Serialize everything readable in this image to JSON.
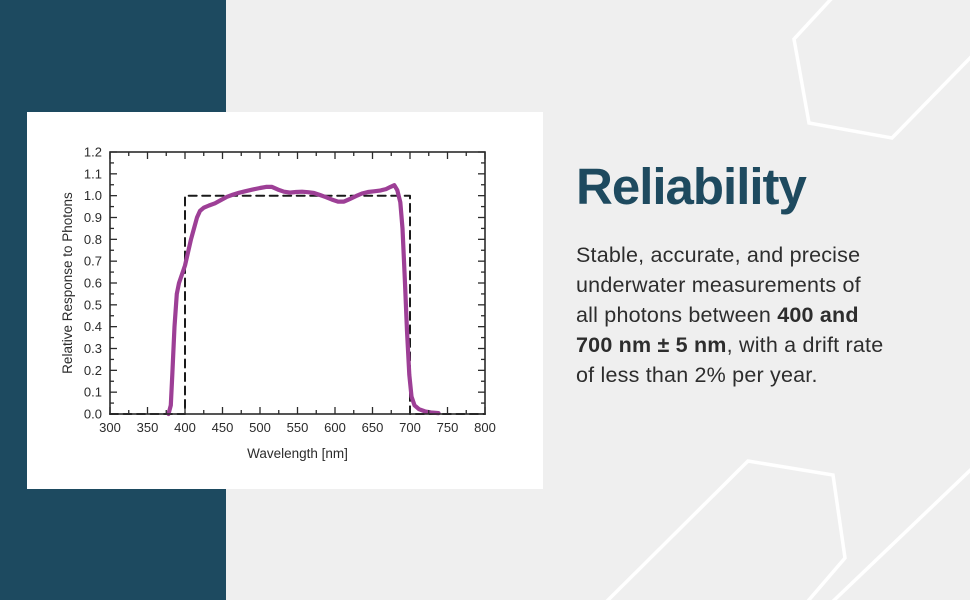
{
  "palette": {
    "background": "#efefef",
    "accent_band": "#1d4a60",
    "card": "#ffffff",
    "hexagon_outline": "#ffffff",
    "heading": "#1e4a5f",
    "body_text": "#2d2d2d",
    "axis": "#2b2b2b",
    "curve": "#9d3f96",
    "ideal_dashed": "#1a1a1a"
  },
  "text_panel": {
    "heading": "Reliability",
    "body_segments": [
      {
        "text": "Stable, accurate, and precise\nunderwater measurements of\nall photons between ",
        "bold": false
      },
      {
        "text": "400 and\n700 nm ± 5 nm",
        "bold": true
      },
      {
        "text": ", with a drift rate\nof less than 2% per year.",
        "bold": false
      }
    ]
  },
  "chart_data": {
    "type": "line",
    "title": "",
    "xlabel": "Wavelength [nm]",
    "ylabel": "Relative Response to Photons",
    "xlim": [
      300,
      800
    ],
    "ylim": [
      0,
      1.2
    ],
    "x_major_step": 50,
    "x_minor_step": 25,
    "y_major_step": 0.1,
    "y_minor_step": 0.05,
    "x_tick_labels": [
      "300",
      "350",
      "400",
      "450",
      "500",
      "550",
      "600",
      "650",
      "700",
      "750",
      "800"
    ],
    "y_tick_labels": [
      "0.0",
      "0.1",
      "0.2",
      "0.3",
      "0.4",
      "0.5",
      "0.6",
      "0.7",
      "0.8",
      "0.9",
      "1.0",
      "1.1",
      "1.2"
    ],
    "grid": false,
    "legend": null,
    "series": [
      {
        "name": "ideal-quantum-response",
        "style": "dashed",
        "color": "#1a1a1a",
        "points": [
          [
            300,
            0
          ],
          [
            400,
            0
          ],
          [
            400,
            1.0
          ],
          [
            700,
            1.0
          ],
          [
            700,
            0
          ],
          [
            800,
            0
          ]
        ]
      },
      {
        "name": "measured-response",
        "style": "solid",
        "color": "#9d3f96",
        "points": [
          [
            378,
            0.0
          ],
          [
            381,
            0.04
          ],
          [
            383,
            0.18
          ],
          [
            386,
            0.4
          ],
          [
            389,
            0.55
          ],
          [
            392,
            0.6
          ],
          [
            396,
            0.64
          ],
          [
            400,
            0.68
          ],
          [
            404,
            0.74
          ],
          [
            408,
            0.8
          ],
          [
            412,
            0.85
          ],
          [
            416,
            0.9
          ],
          [
            420,
            0.93
          ],
          [
            425,
            0.945
          ],
          [
            432,
            0.955
          ],
          [
            440,
            0.965
          ],
          [
            448,
            0.98
          ],
          [
            456,
            0.995
          ],
          [
            464,
            1.005
          ],
          [
            472,
            1.013
          ],
          [
            480,
            1.02
          ],
          [
            490,
            1.028
          ],
          [
            500,
            1.035
          ],
          [
            508,
            1.04
          ],
          [
            516,
            1.04
          ],
          [
            524,
            1.028
          ],
          [
            532,
            1.018
          ],
          [
            540,
            1.014
          ],
          [
            548,
            1.017
          ],
          [
            556,
            1.018
          ],
          [
            564,
            1.016
          ],
          [
            572,
            1.012
          ],
          [
            580,
            1.003
          ],
          [
            588,
            0.993
          ],
          [
            596,
            0.982
          ],
          [
            604,
            0.973
          ],
          [
            612,
            0.973
          ],
          [
            620,
            0.985
          ],
          [
            628,
            0.998
          ],
          [
            636,
            1.01
          ],
          [
            644,
            1.017
          ],
          [
            652,
            1.02
          ],
          [
            660,
            1.023
          ],
          [
            668,
            1.03
          ],
          [
            674,
            1.04
          ],
          [
            679,
            1.048
          ],
          [
            683,
            1.025
          ],
          [
            687,
            0.97
          ],
          [
            690,
            0.85
          ],
          [
            693,
            0.62
          ],
          [
            696,
            0.38
          ],
          [
            699,
            0.18
          ],
          [
            702,
            0.08
          ],
          [
            706,
            0.04
          ],
          [
            712,
            0.022
          ],
          [
            720,
            0.012
          ],
          [
            728,
            0.007
          ],
          [
            738,
            0.004
          ]
        ]
      }
    ]
  }
}
